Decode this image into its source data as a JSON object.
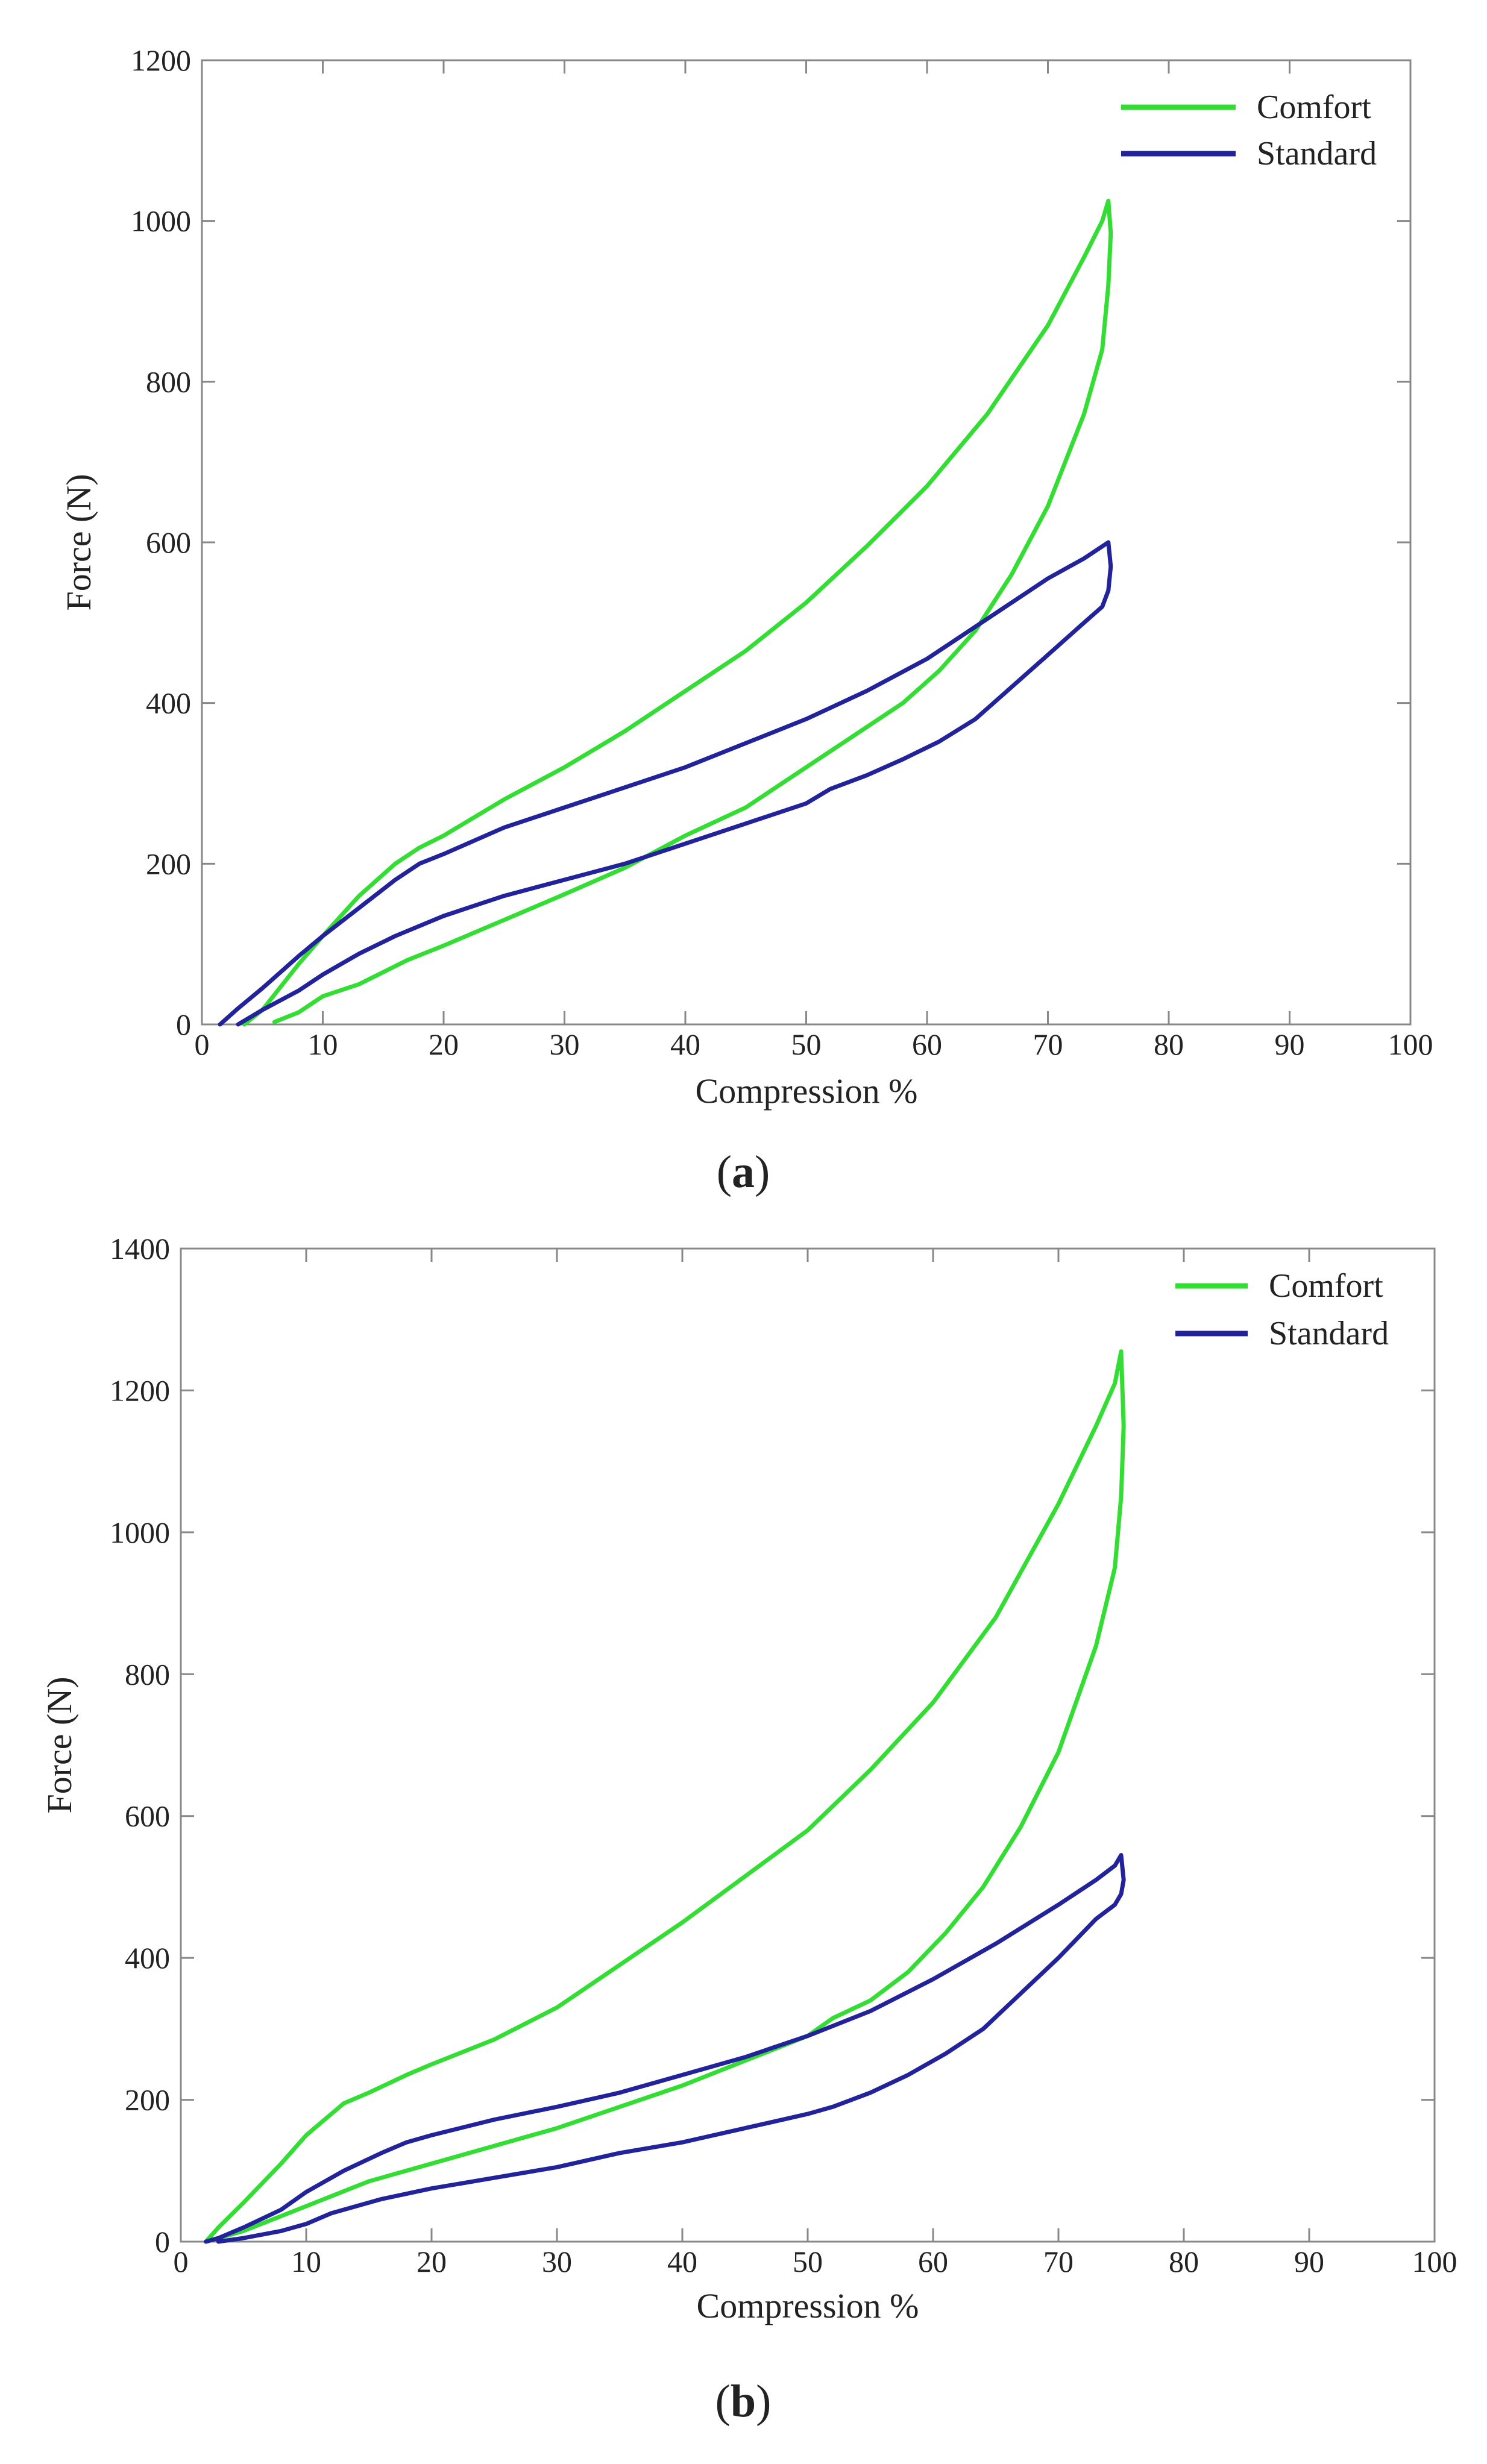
{
  "colors": {
    "comfort": "#33dd33",
    "standard": "#22229a",
    "axis": "#888888",
    "text": "#222222"
  },
  "chart_data": [
    {
      "id": "a",
      "type": "line",
      "caption": "a",
      "xlabel": "Compression %",
      "ylabel": "Force (N)",
      "xlim": [
        0,
        100
      ],
      "ylim": [
        0,
        1200
      ],
      "xticks": [
        0,
        10,
        20,
        30,
        40,
        50,
        60,
        70,
        80,
        90,
        100
      ],
      "yticks": [
        0,
        200,
        400,
        600,
        800,
        1000,
        1200
      ],
      "grid": false,
      "legend_position": "top-right",
      "series": [
        {
          "name": "Comfort",
          "color_key": "comfort",
          "x": [
            3.5,
            5,
            8,
            10,
            13,
            16,
            18,
            20,
            25,
            30,
            35,
            40,
            45,
            50,
            55,
            60,
            65,
            70,
            73,
            74.5,
            75,
            75.2,
            75,
            74.5,
            73,
            70,
            67,
            64,
            61,
            58,
            55,
            52,
            50,
            45,
            40,
            35,
            30,
            25,
            20,
            17,
            13,
            10,
            8,
            6
          ],
          "y": [
            0,
            18,
            75,
            110,
            160,
            200,
            220,
            235,
            280,
            320,
            365,
            415,
            465,
            525,
            595,
            670,
            760,
            870,
            955,
            1000,
            1025,
            985,
            920,
            840,
            760,
            645,
            560,
            490,
            440,
            400,
            370,
            340,
            320,
            270,
            235,
            195,
            162,
            130,
            98,
            80,
            50,
            35,
            15,
            3
          ]
        },
        {
          "name": "Standard",
          "color_key": "standard",
          "x": [
            1.5,
            3,
            5,
            8,
            10,
            13,
            16,
            18,
            20,
            25,
            30,
            35,
            40,
            45,
            50,
            55,
            60,
            65,
            70,
            73,
            74.5,
            75,
            75.2,
            75,
            74.5,
            73,
            70,
            67,
            64,
            61,
            58,
            55,
            52,
            50,
            45,
            40,
            35,
            30,
            25,
            20,
            16,
            13,
            10,
            8,
            5,
            3
          ],
          "y": [
            0,
            20,
            45,
            85,
            110,
            145,
            180,
            200,
            212,
            245,
            270,
            295,
            320,
            350,
            380,
            415,
            455,
            505,
            555,
            580,
            595,
            600,
            570,
            540,
            520,
            500,
            460,
            420,
            380,
            352,
            330,
            310,
            293,
            275,
            250,
            225,
            200,
            180,
            160,
            135,
            110,
            88,
            62,
            42,
            18,
            0
          ]
        }
      ]
    },
    {
      "id": "b",
      "type": "line",
      "caption": "b",
      "xlabel": "Compression %",
      "ylabel": "Force (N)",
      "xlim": [
        0,
        100
      ],
      "ylim": [
        0,
        1400
      ],
      "xticks": [
        0,
        10,
        20,
        30,
        40,
        50,
        60,
        70,
        80,
        90,
        100
      ],
      "yticks": [
        0,
        200,
        400,
        600,
        800,
        1000,
        1200,
        1400
      ],
      "grid": false,
      "legend_position": "top-right",
      "series": [
        {
          "name": "Comfort",
          "color_key": "comfort",
          "x": [
            2,
            3,
            5,
            8,
            10,
            13,
            15,
            18,
            20,
            25,
            30,
            35,
            40,
            45,
            50,
            55,
            60,
            65,
            70,
            73,
            74.5,
            75,
            75.2,
            75,
            74.5,
            73,
            70,
            67,
            64,
            61,
            58,
            55,
            52,
            50,
            45,
            40,
            35,
            30,
            25,
            20,
            15,
            10,
            5,
            2
          ],
          "y": [
            0,
            20,
            55,
            110,
            150,
            195,
            210,
            235,
            250,
            285,
            330,
            390,
            450,
            515,
            580,
            665,
            760,
            880,
            1040,
            1150,
            1210,
            1255,
            1150,
            1050,
            950,
            840,
            690,
            585,
            500,
            435,
            380,
            340,
            315,
            290,
            255,
            220,
            190,
            160,
            135,
            110,
            85,
            50,
            15,
            0
          ]
        },
        {
          "name": "Standard",
          "color_key": "standard",
          "x": [
            2,
            3,
            5,
            8,
            10,
            13,
            16,
            18,
            20,
            25,
            30,
            35,
            40,
            45,
            50,
            55,
            60,
            65,
            70,
            73,
            74.5,
            75,
            75.2,
            75,
            74.5,
            73,
            70,
            67,
            64,
            61,
            58,
            55,
            52,
            50,
            45,
            40,
            35,
            30,
            25,
            20,
            16,
            12,
            10,
            8,
            5,
            3
          ],
          "y": [
            0,
            5,
            20,
            45,
            70,
            100,
            125,
            140,
            150,
            172,
            190,
            210,
            235,
            260,
            290,
            325,
            370,
            420,
            475,
            510,
            530,
            545,
            510,
            490,
            475,
            455,
            400,
            350,
            300,
            265,
            235,
            210,
            190,
            180,
            160,
            140,
            125,
            105,
            90,
            75,
            60,
            40,
            25,
            15,
            5,
            0
          ]
        }
      ]
    }
  ]
}
